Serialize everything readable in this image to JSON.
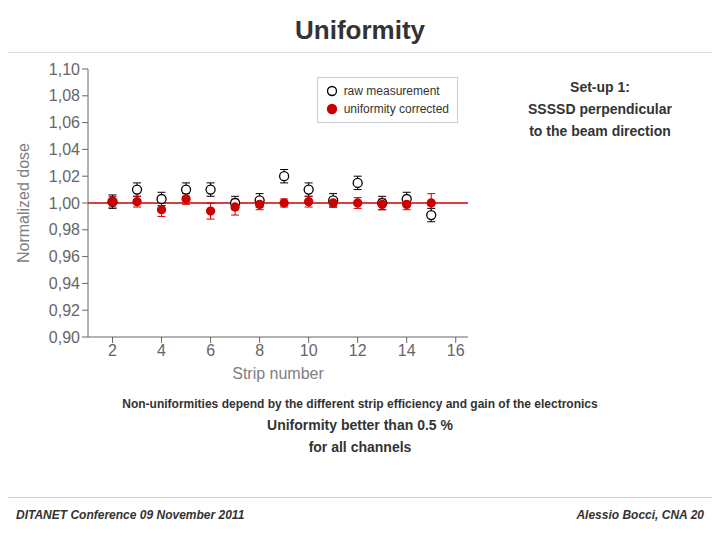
{
  "chart_data": {
    "type": "scatter",
    "title": "Uniformity",
    "x": [
      2,
      3,
      4,
      5,
      6,
      7,
      8,
      9,
      10,
      11,
      12,
      13,
      14,
      15
    ],
    "series": [
      {
        "name": "raw measurement",
        "color": "black",
        "marker": "open_circle",
        "values": [
          1.001,
          1.01,
          1.003,
          1.01,
          1.01,
          1.0,
          1.002,
          1.02,
          1.01,
          1.002,
          1.015,
          1.0,
          1.003,
          0.991
        ],
        "errors": [
          0.005,
          0.005,
          0.005,
          0.005,
          0.005,
          0.005,
          0.005,
          0.005,
          0.005,
          0.005,
          0.005,
          0.005,
          0.005,
          0.005
        ]
      },
      {
        "name": "uniformity corrected",
        "color": "#cc0000",
        "marker": "circle",
        "values": [
          1.001,
          1.001,
          0.995,
          1.003,
          0.994,
          0.997,
          0.999,
          1.0,
          1.001,
          1.0,
          1.0,
          0.999,
          0.999,
          1.0
        ],
        "errors": [
          0.004,
          0.004,
          0.005,
          0.004,
          0.006,
          0.006,
          0.004,
          0.003,
          0.004,
          0.003,
          0.004,
          0.004,
          0.004,
          0.007
        ]
      }
    ],
    "xlim": [
      1,
      16.5
    ],
    "ylim": [
      0.9,
      1.1
    ],
    "xticks": [
      2,
      4,
      6,
      8,
      10,
      12,
      14,
      16
    ],
    "yticks": [
      {
        "value": 0.9,
        "label": "0,90"
      },
      {
        "value": 0.92,
        "label": "0,92"
      },
      {
        "value": 0.94,
        "label": "0,94"
      },
      {
        "value": 0.96,
        "label": "0,96"
      },
      {
        "value": 0.98,
        "label": "0,98"
      },
      {
        "value": 1.0,
        "label": "1,00"
      },
      {
        "value": 1.02,
        "label": "1,02"
      },
      {
        "value": 1.04,
        "label": "1,04"
      },
      {
        "value": 1.06,
        "label": "1,06"
      },
      {
        "value": 1.08,
        "label": "1,08"
      },
      {
        "value": 1.1,
        "label": "1,10"
      }
    ],
    "xlabel": "Strip number",
    "ylabel": "Normalized dose",
    "legend": "upper right",
    "grid": false,
    "reference_lines": [
      {
        "y": 1.0,
        "color": "#cc0000"
      }
    ],
    "annotations": [
      "Set-up 1:",
      "SSSSD perpendicular",
      "to the beam direction",
      "Non-uniformities depend by the different strip efficiency and gain of the electronics",
      "Uniformity better than 0.5 %",
      "for all channels"
    ],
    "footer": [
      "DITANET Conference 09 November 2011",
      "Alessio Bocci, CNA   20"
    ]
  }
}
